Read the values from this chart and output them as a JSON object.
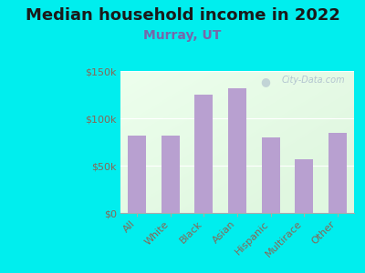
{
  "title": "Median household income in 2022",
  "subtitle": "Murray, UT",
  "categories": [
    "All",
    "White",
    "Black",
    "Asian",
    "Hispanic",
    "Multirace",
    "Other"
  ],
  "values": [
    82000,
    82000,
    125000,
    132000,
    80000,
    57000,
    85000
  ],
  "bar_color": "#b8a0d0",
  "background_outer": "#00EEEE",
  "title_color": "#1a1a1a",
  "subtitle_color": "#7766aa",
  "tick_label_color": "#886655",
  "watermark_text": "City-Data.com",
  "watermark_color": "#aabbcc",
  "ylim": [
    0,
    150000
  ],
  "yticks": [
    0,
    50000,
    100000,
    150000
  ],
  "ytick_labels": [
    "$0",
    "$50k",
    "$100k",
    "$150k"
  ],
  "title_fontsize": 13,
  "subtitle_fontsize": 10,
  "tick_fontsize": 8
}
